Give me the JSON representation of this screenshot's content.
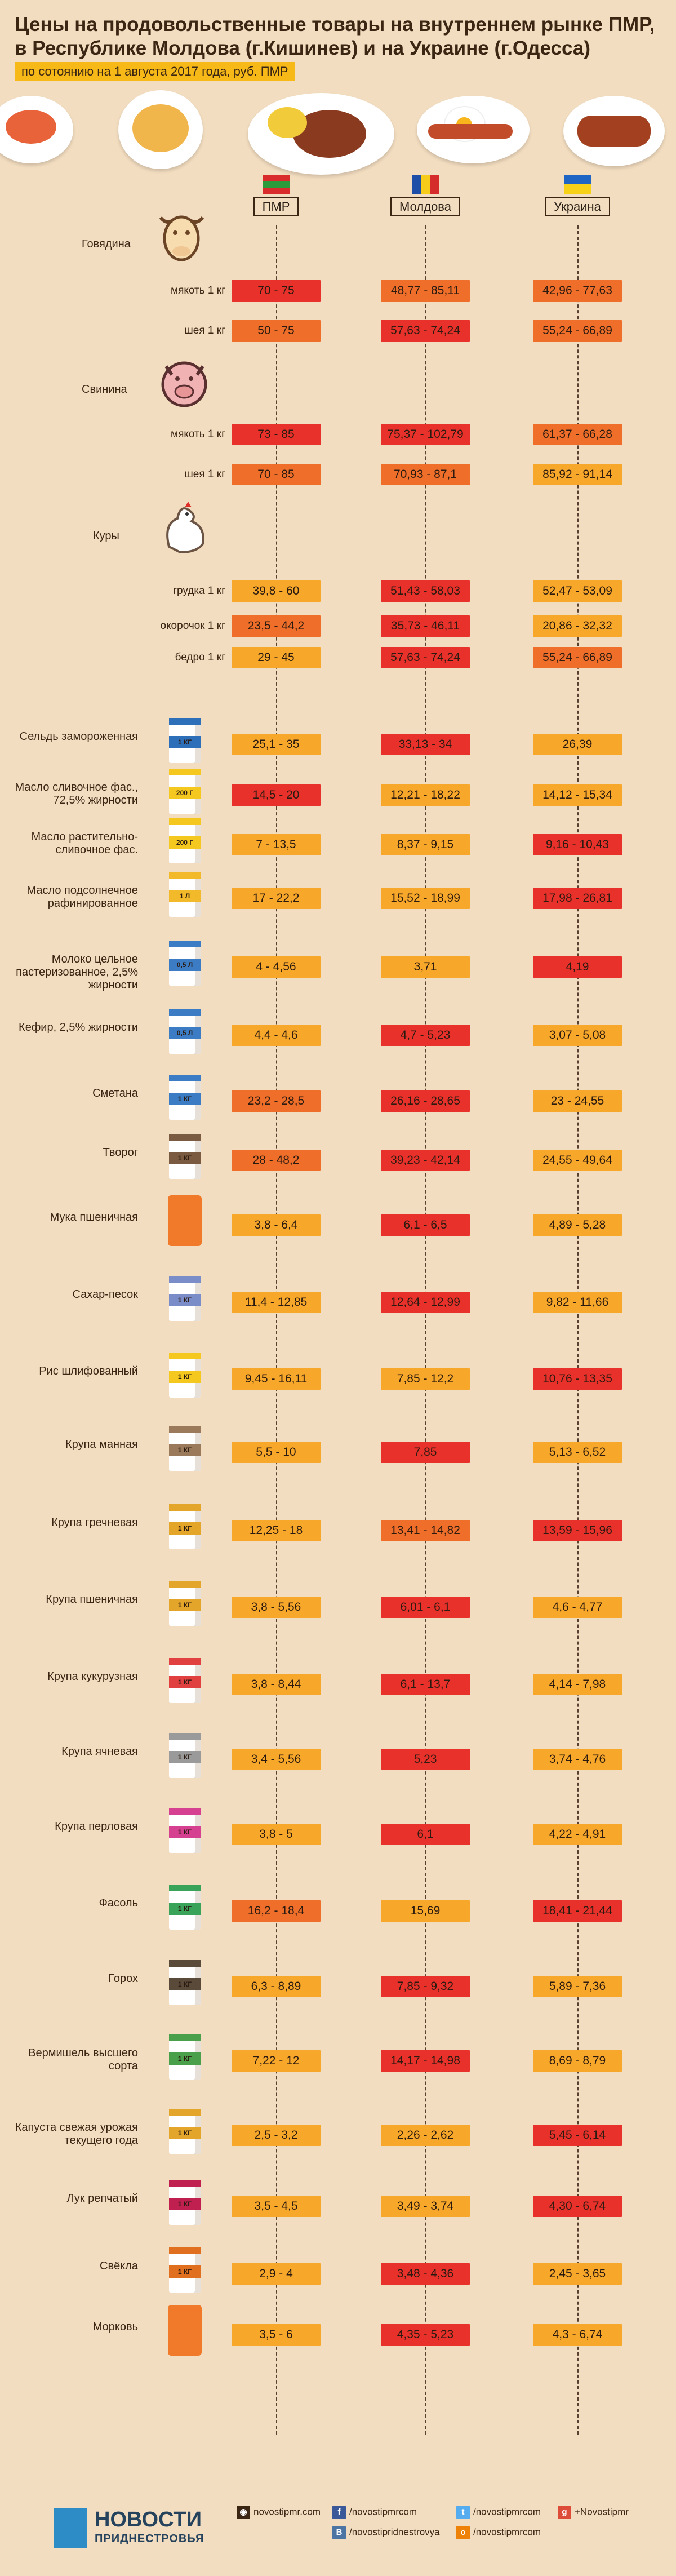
{
  "header": {
    "title_line1": "Цены на продовольственные товары на внутреннем рынке ПМР,",
    "title_line2": "в Республике Молдова (г.Кишинев) и на Украине (г.Одесса)",
    "subtitle": "по сотоянию на 1 августа 2017 года, руб. ПМР"
  },
  "columns": {
    "pmr": "ПМР",
    "moldova": "Молдова",
    "ukraine": "Украина"
  },
  "colors": {
    "red": "#e8312a",
    "orange": "#ef6f2a",
    "yellow": "#f7a72a",
    "background": "#f3ddc0"
  },
  "categories": {
    "beef": "Говядина",
    "pork": "Свинина",
    "chicken": "Куры"
  },
  "rows": [
    {
      "label": "мякоть 1 кг",
      "pmr": "70 - 75",
      "md": "48,77 - 85,11",
      "ua": "42,96 - 77,63"
    },
    {
      "label": "шея 1 кг",
      "pmr": "50 - 75",
      "md": "57,63 - 74,24",
      "ua": "55,24 - 66,89"
    },
    {
      "label": "мякоть 1 кг",
      "pmr": "73 - 85",
      "md": "75,37 - 102,79",
      "ua": "61,37 - 66,28"
    },
    {
      "label": "шея 1 кг",
      "pmr": "70 - 85",
      "md": "70,93 - 87,1",
      "ua": "85,92 - 91,14"
    },
    {
      "label": "грудка 1 кг",
      "pmr": "39,8 - 60",
      "md": "51,43 - 58,03",
      "ua": "52,47 - 53,09"
    },
    {
      "label": "окорочок 1 кг",
      "pmr": "23,5 - 44,2",
      "md": "35,73 - 46,11",
      "ua": "20,86 - 32,32"
    },
    {
      "label": "бедро 1 кг",
      "pmr": "29 - 45",
      "md": "57,63 - 74,24",
      "ua": "55,24 - 66,89"
    },
    {
      "label": "Сельдь замороженная",
      "pmr": "25,1 - 35",
      "md": "33,13 - 34",
      "ua": "26,39",
      "pack": "1 КГ"
    },
    {
      "label": "Масло сливочное фас., 72,5% жирности",
      "pmr": "14,5 - 20",
      "md": "12,21 - 18,22",
      "ua": "14,12 - 15,34",
      "pack": "200 Г"
    },
    {
      "label": "Масло растительно- сливочное фас.",
      "pmr": "7 - 13,5",
      "md": "8,37 - 9,15",
      "ua": "9,16 - 10,43",
      "pack": "200 Г"
    },
    {
      "label": "Масло подсолнечное рафинированное",
      "pmr": "17 - 22,2",
      "md": "15,52 - 18,99",
      "ua": "17,98 - 26,81",
      "pack": "1 Л"
    },
    {
      "label": "Молоко цельное пастеризованное, 2,5% жирности",
      "pmr": "4 - 4,56",
      "md": "3,71",
      "ua": "4,19",
      "pack": "0,5 Л"
    },
    {
      "label": "Кефир, 2,5% жирности",
      "pmr": "4,4 - 4,6",
      "md": "4,7 - 5,23",
      "ua": "3,07 - 5,08",
      "pack": "0,5 Л"
    },
    {
      "label": "Сметана",
      "pmr": "23,2 - 28,5",
      "md": "26,16 - 28,65",
      "ua": "23 - 24,55",
      "pack": "1 КГ"
    },
    {
      "label": "Творог",
      "pmr": "28 - 48,2",
      "md": "39,23 - 42,14",
      "ua": "24,55 - 49,64",
      "pack": "1 КГ"
    },
    {
      "label": "Мука пшеничная",
      "pmr": "3,8 - 6,4",
      "md": "6,1 - 6,5",
      "ua": "4,89 - 5,28"
    },
    {
      "label": "Сахар-песок",
      "pmr": "11,4 - 12,85",
      "md": "12,64 - 12,99",
      "ua": "9,82 - 11,66",
      "pack": "1 КГ"
    },
    {
      "label": "Рис шлифованный",
      "pmr": "9,45 - 16,11",
      "md": "7,85 - 12,2",
      "ua": "10,76 - 13,35",
      "pack": "1 КГ"
    },
    {
      "label": "Крупа манная",
      "pmr": "5,5 - 10",
      "md": "7,85",
      "ua": "5,13 - 6,52",
      "pack": "1 КГ"
    },
    {
      "label": "Крупа гречневая",
      "pmr": "12,25 - 18",
      "md": "13,41 - 14,82",
      "ua": "13,59 - 15,96",
      "pack": "1 КГ"
    },
    {
      "label": "Крупа пшеничная",
      "pmr": "3,8 - 5,56",
      "md": "6,01 - 6,1",
      "ua": "4,6 - 4,77",
      "pack": "1 КГ"
    },
    {
      "label": "Крупа кукурузная",
      "pmr": "3,8 - 8,44",
      "md": "6,1 - 13,7",
      "ua": "4,14 - 7,98",
      "pack": "1 КГ"
    },
    {
      "label": "Крупа ячневая",
      "pmr": "3,4 - 5,56",
      "md": "5,23",
      "ua": "3,74 - 4,76",
      "pack": "1 КГ"
    },
    {
      "label": "Крупа перловая",
      "pmr": "3,8 - 5",
      "md": "6,1",
      "ua": "4,22 - 4,91",
      "pack": "1 КГ"
    },
    {
      "label": "Фасоль",
      "pmr": "16,2 - 18,4",
      "md": "15,69",
      "ua": "18,41 - 21,44",
      "pack": "1 КГ"
    },
    {
      "label": "Горох",
      "pmr": "6,3 - 8,89",
      "md": "7,85 - 9,32",
      "ua": "5,89 - 7,36",
      "pack": "1 КГ"
    },
    {
      "label": "Вермишель высшего сорта",
      "pmr": "7,22 - 12",
      "md": "14,17 - 14,98",
      "ua": "8,69 - 8,79",
      "pack": "1 КГ"
    },
    {
      "label": "Капуста свежая урожая текущего года",
      "pmr": "2,5 - 3,2",
      "md": "2,26 - 2,62",
      "ua": "5,45 - 6,14",
      "pack": "1 КГ"
    },
    {
      "label": "Лук репчатый",
      "pmr": "3,5 - 4,5",
      "md": "3,49 - 3,74",
      "ua": "4,30 - 6,74",
      "pack": "1 КГ"
    },
    {
      "label": "Свёкла",
      "pmr": "2,9 - 4",
      "md": "3,48 - 4,36",
      "ua": "2,45 - 3,65",
      "pack": "1 КГ"
    },
    {
      "label": "Морковь",
      "pmr": "3,5 - 6",
      "md": "4,35 - 5,23",
      "ua": "4,3 - 6,74"
    }
  ],
  "footer": {
    "logo_title": "НОВОСТИ",
    "logo_sub": "ПРИДНЕСТРОВЬЯ",
    "site": "novostipmr.com",
    "facebook": "/novostipmrcom",
    "vk": "/novostipridnestrovya",
    "twitter": "/novostipmrcom",
    "ok": "/novostipmrcom",
    "gplus": "+Novostipmr"
  }
}
